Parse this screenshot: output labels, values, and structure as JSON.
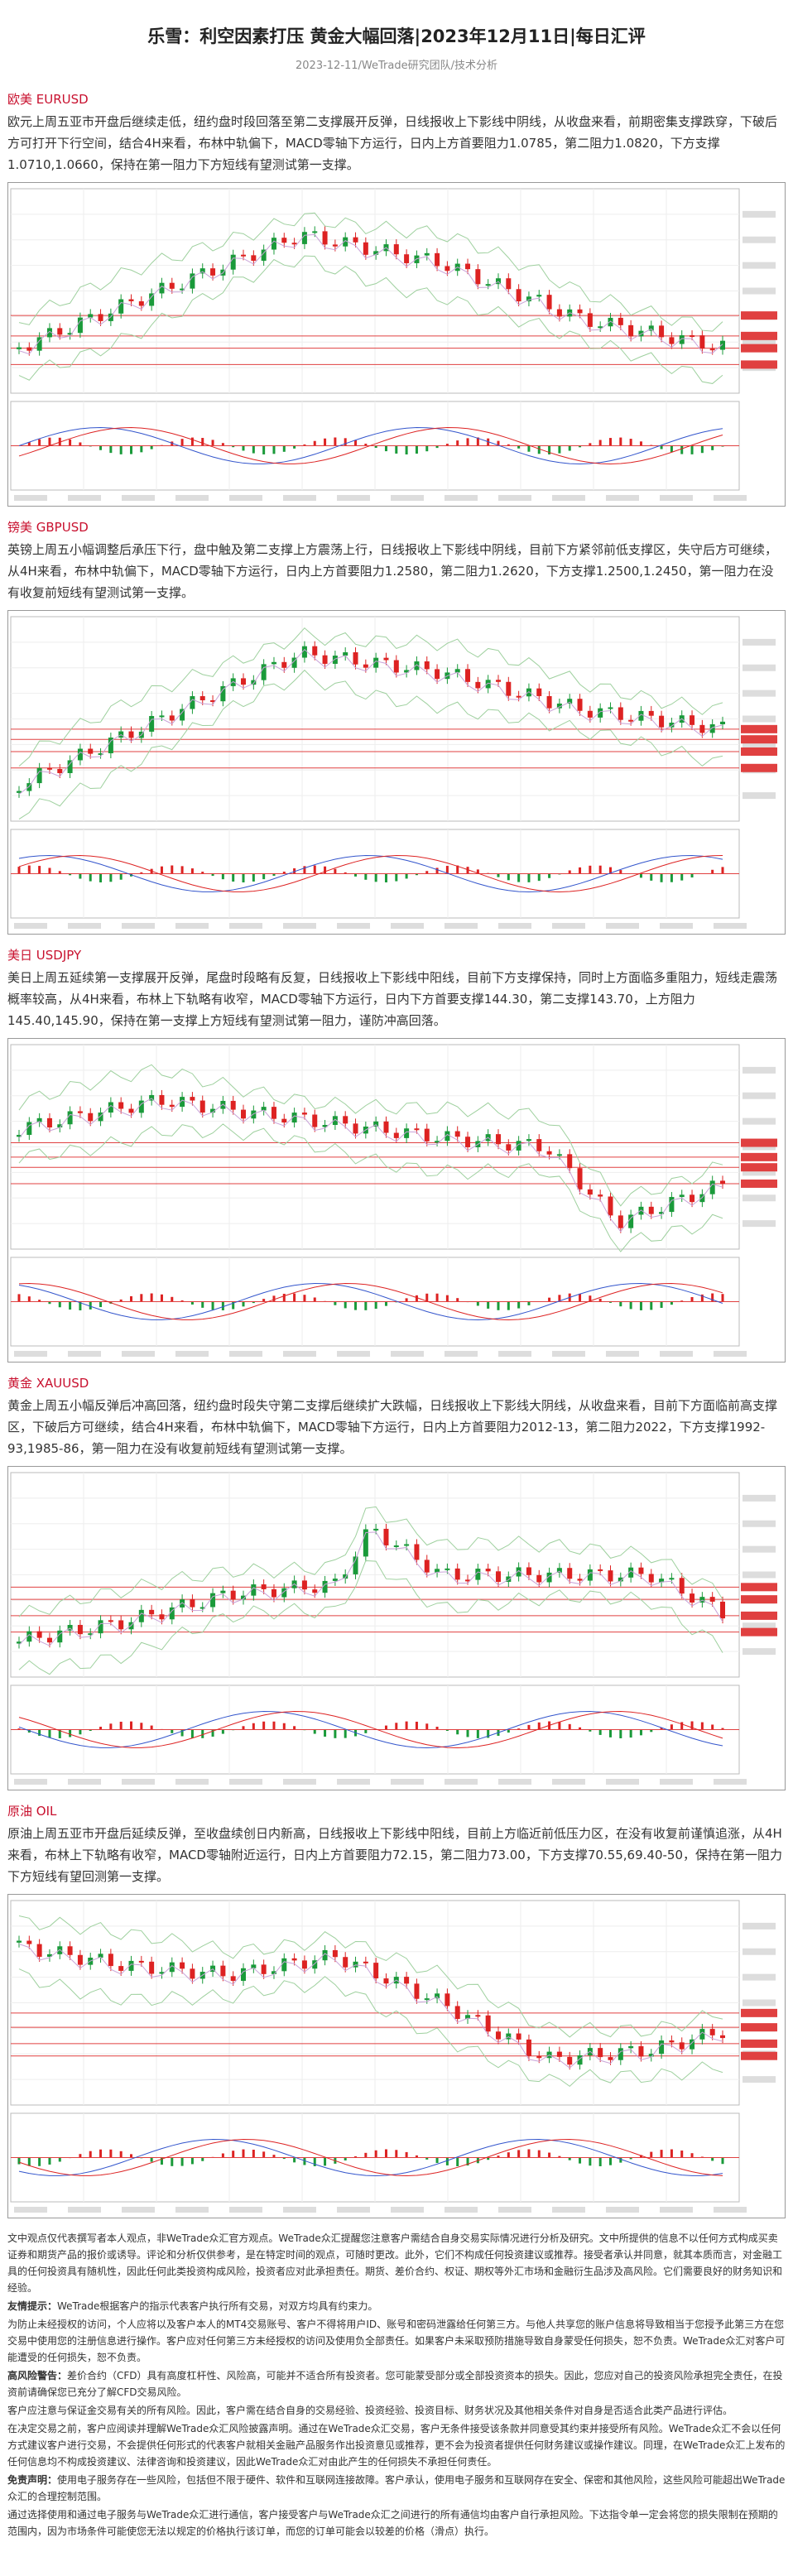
{
  "header": {
    "title": "乐雪：利空因素打压 黄金大幅回落|2023年12月11日|每日汇评",
    "subtitle": "2023-12-11/WeTrade研究团队/技术分析"
  },
  "sections": [
    {
      "label": "欧美 EURUSD",
      "text": "欧元上周五亚市开盘后继续走低，纽约盘时段回落至第二支撑展开反弹，日线报收上下影线中阴线，从收盘来看，前期密集支撑跌穿，下破后方可打开下行空间，结合4H来看，布林中轨偏下，MACD零轴下方运行，日内上方首要阻力1.0785，第二阻力1.0820，下方支撑1.0710,1.0660，保持在第一阻力下方短线有望测试第一支撑。"
    },
    {
      "label": "镑美 GBPUSD",
      "text": "英镑上周五小幅调整后承压下行，盘中触及第二支撑上方震荡上行，日线报收上下影线中阴线，目前下方紧邻前低支撑区，失守后方可继续，从4H来看，布林中轨偏下，MACD零轴下方运行，日内上方首要阻力1.2580，第二阻力1.2620，下方支撑1.2500,1.2450，第一阻力在没有收复前短线有望测试第一支撑。"
    },
    {
      "label": "美日 USDJPY",
      "text": "美日上周五延续第一支撑展开反弹，尾盘时段略有反复，日线报收上下影线中阳线，目前下方支撑保持，同时上方面临多重阻力，短线走震荡概率较高，从4H来看，布林上下轨略有收窄，MACD零轴下方运行，日内下方首要支撑144.30，第二支撑143.70，上方阻力145.40,145.90，保持在第一支撑上方短线有望测试第一阻力，谨防冲高回落。"
    },
    {
      "label": "黄金 XAUUSD",
      "text": "黄金上周五小幅反弹后冲高回落，纽约盘时段失守第二支撑后继续扩大跌幅，日线报收上下影线大阴线，从收盘来看，目前下方面临前高支撑区，下破后方可继续，结合4H来看，布林中轨偏下，MACD零轴下方运行，日内上方首要阻力2012-13，第二阻力2022，下方支撑1992-93,1985-86，第一阻力在没有收复前短线有望测试第一支撑。"
    },
    {
      "label": "原油 OIL",
      "text": "原油上周五亚市开盘后延续反弹，至收盘续创日内新高，日线报收上下影线中阳线，目前上方临近前低压力区，在没有收复前谨慎追涨，从4H来看，布林上下轨略有收窄，MACD零轴附近运行，日内上方首要阻力72.15，第二阻力73.00，下方支撑70.55,69.40-50，保持在第一阻力下方短线有望回测第一支撑。"
    }
  ],
  "disclaimer": [
    {
      "text": "文中观点仅代表撰写者本人观点，非WeTrade众汇官方观点。WeTrade众汇提醒您注意客户需结合自身交易实际情况进行分析及研究。文中所提供的信息不以任何方式构成买卖证券和期货产品的报价或诱导。评论和分析仅供参考，是在特定时间的观点，可随时更改。此外，它们不构成任何投资建议或推荐。接受者承认并同意，就其本质而言，对金融工具的任何投资具有随机性，因此任何此类投资构成风险，投资者应对此承担责任。期货、差价合约、权证、期权等外汇市场和金融衍生品涉及高风险。它们需要良好的财务知识和经验。"
    },
    {
      "lead": "友情提示：",
      "text": "WeTrade根据客户的指示代表客户执行所有交易，对双方均具有约束力。"
    },
    {
      "text": "为防止未经授权的访问，个人应将以及客户本人的MT4交易账号、客户不得将用户ID、账号和密码泄露给任何第三方。与他人共享您的账户信息将导致相当于您授予此第三方在您交易中使用您的注册信息进行操作。客户应对任何第三方未经授权的访问及使用负全部责任。如果客户未采取预防措施导致自身蒙受任何损失，恕不负责。WeTrade众汇对客户可能遭受的任何损失，恕不负责。"
    },
    {
      "lead": "高风险警告：",
      "text": "差价合约（CFD）具有高度杠杆性、风险高，可能并不适合所有投资者。您可能蒙受部分或全部投资资本的损失。因此，您应对自己的投资风险承担完全责任，在投资前请确保您已充分了解CFD交易风险。"
    },
    {
      "text": "客户应注意与保证金交易有关的所有风险。因此，客户需在结合自身的交易经验、投资经验、投资目标、财务状况及其他相关条件对自身是否适合此类产品进行评估。"
    },
    {
      "text": "在决定交易之前，客户应阅读并理解WeTrade众汇风险披露声明。通过在WeTrade众汇交易，客户无条件接受该条款并同意受其约束并接受所有风险。WeTrade众汇不会以任何方式建议客户进行交易，不会提供任何形式的代表客户就相关金融产品服务作出投资意见或推荐，更不会为投资者提供任何财务建议或操作建议。同理，在WeTrade众汇上发布的任何信息均不构成投资建议、法律咨询和投资建议，因此WeTrade众汇对由此产生的任何损失不承担任何责任。"
    },
    {
      "lead": "免责声明：",
      "text": "使用电子服务存在一些风险，包括但不限于硬件、软件和互联网连接故障。客户承认，使用电子服务和互联网存在安全、保密和其他风险，这些风险可能超出WeTrade众汇的合理控制范围。"
    },
    {
      "text": "通过选择使用和通过电子服务与WeTrade众汇进行通信，客户接受客户与WeTrade众汇之间进行的所有通信均由客户自行承担风险。下达指令单一定会将您的损失限制在预期的范围内，因为市场条件可能使您无法以规定的价格执行该订单，而您的订单可能会以较差的价格（滑点）执行。"
    }
  ]
}
